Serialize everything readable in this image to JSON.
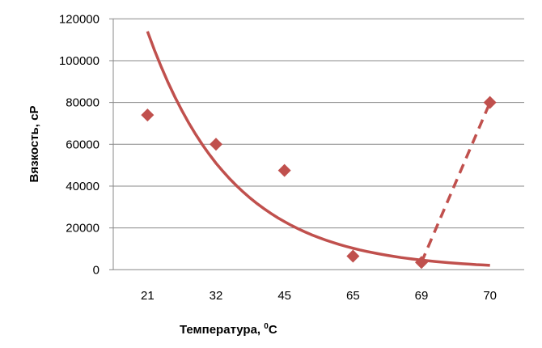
{
  "chart_data": {
    "type": "scatter",
    "title": "",
    "xlabel": "Температура, ",
    "xlabel_sup": "0",
    "xlabel_unit": "C",
    "ylabel": "Вязкость, cP",
    "categories": [
      "21",
      "32",
      "45",
      "65",
      "69",
      "70"
    ],
    "ylim": [
      0,
      120000
    ],
    "yticks": [
      "0",
      "20000",
      "40000",
      "60000",
      "80000",
      "100000",
      "120000"
    ],
    "grid": true,
    "series": [
      {
        "values": [
          74000,
          60000,
          47500,
          6500,
          3500,
          80000
        ],
        "marker": "diamond",
        "color": "#c0504d"
      }
    ],
    "trendline": {
      "type": "exponential",
      "values": [
        114000,
        51000,
        23000,
        10300,
        4600,
        2100
      ],
      "color": "#c0504d",
      "style": "solid"
    },
    "segment": {
      "from_category": "69",
      "to_category": "70",
      "values": [
        3500,
        80000
      ],
      "color": "#c0504d",
      "style": "dashed"
    }
  }
}
